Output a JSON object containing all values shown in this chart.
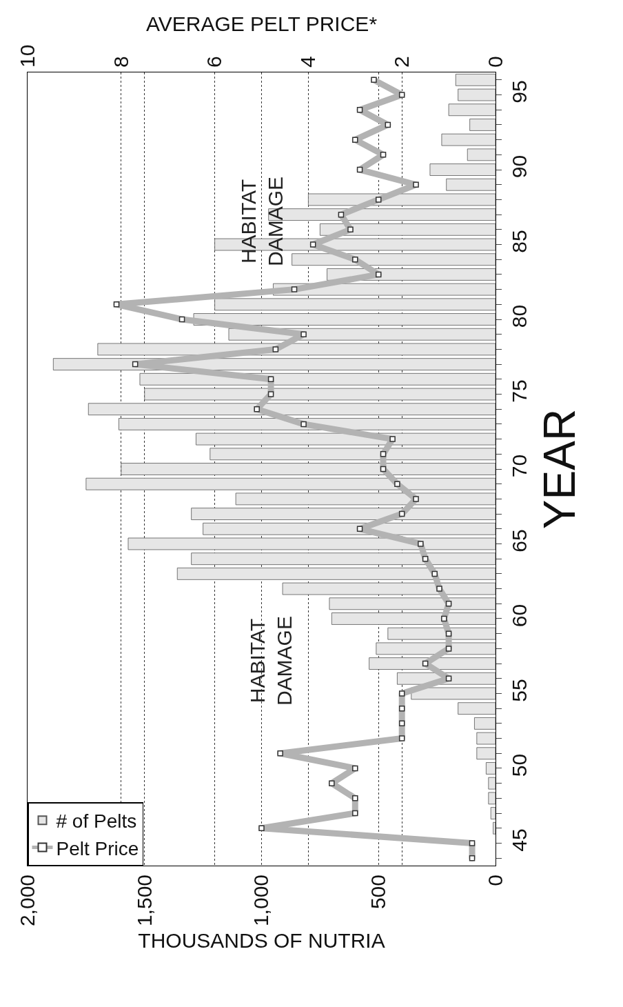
{
  "chart_data": {
    "type": "bar",
    "orientation": "horizontal",
    "xlabel": "THOUSANDS OF NUTRIA",
    "x2label": "AVERAGE PELT PRICE*",
    "ylabel": "YEAR",
    "categories": [
      null,
      "95",
      null,
      null,
      null,
      null,
      "90",
      null,
      null,
      null,
      null,
      "85",
      null,
      null,
      null,
      null,
      "80",
      null,
      null,
      null,
      null,
      "75",
      null,
      null,
      null,
      null,
      "70",
      null,
      null,
      null,
      null,
      "65",
      null,
      null,
      null,
      null,
      "60",
      null,
      null,
      null,
      null,
      "55",
      null,
      null,
      null,
      null,
      "50",
      null,
      null,
      null,
      null,
      "45",
      null
    ],
    "series": [
      {
        "name": "# of Pelts",
        "color": "#e6e6e6",
        "values": [
          170,
          160,
          200,
          110,
          230,
          120,
          280,
          210,
          800,
          970,
          750,
          1200,
          870,
          720,
          950,
          1200,
          1290,
          1140,
          1700,
          1890,
          1520,
          1500,
          1740,
          1610,
          1280,
          1220,
          1600,
          1750,
          1110,
          1300,
          1250,
          1570,
          1300,
          1360,
          910,
          710,
          700,
          460,
          510,
          540,
          420,
          360,
          160,
          90,
          80,
          80,
          40,
          30,
          30,
          20,
          10,
          null,
          null
        ]
      },
      {
        "name": "Pelt Price",
        "type": "line",
        "axis": "x2",
        "color": "#b3b3b3",
        "marker": "square",
        "values": [
          2.6,
          2.0,
          2.9,
          2.3,
          3.0,
          2.4,
          2.9,
          1.7,
          2.5,
          3.3,
          3.1,
          3.9,
          3.0,
          2.5,
          4.3,
          8.1,
          6.7,
          4.1,
          4.7,
          7.7,
          4.8,
          4.8,
          5.1,
          4.1,
          2.2,
          2.4,
          2.4,
          2.1,
          1.7,
          2.0,
          2.9,
          1.6,
          1.5,
          1.3,
          1.2,
          1.0,
          1.1,
          1.0,
          1.0,
          1.5,
          1.0,
          2.0,
          2.0,
          2.0,
          2.0,
          4.6,
          3.0,
          3.5,
          3.0,
          3.0,
          5.0,
          0.5,
          0.5
        ]
      }
    ],
    "xlim": [
      2000,
      0
    ],
    "xticks": [
      0,
      500,
      {
        "value": 1000,
        "label": "1,000"
      },
      {
        "value": 1500,
        "label": "1,500"
      },
      {
        "value": 2000,
        "label": "2,000"
      }
    ],
    "x2lim": [
      10,
      0
    ],
    "x2ticks": [
      0,
      2,
      4,
      6,
      8,
      10
    ],
    "grid": true,
    "legend": "bottom left",
    "annotations": [
      "HABITAT\nDAMAGE",
      "HABITAT\nDAMAGE"
    ]
  }
}
